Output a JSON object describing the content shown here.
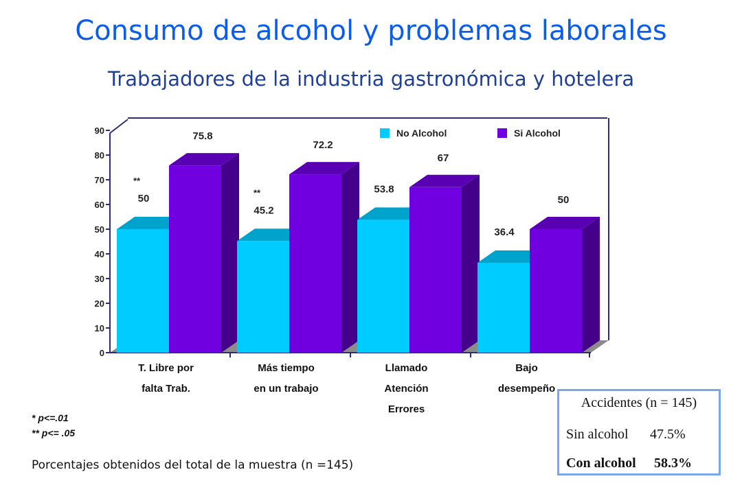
{
  "header": {
    "title": "Consumo de alcohol y problemas laborales",
    "subtitle": "Trabajadores de la industria gastronómica y hotelera"
  },
  "chart_data": {
    "type": "bar",
    "style": "3d-grouped",
    "categories": [
      [
        "T. Libre por",
        "falta Trab."
      ],
      [
        "Más tiempo",
        "en un trabajo"
      ],
      [
        "Llamado",
        "Atención",
        "Errores"
      ],
      [
        "Bajo",
        "desempeño"
      ]
    ],
    "series": [
      {
        "name": "No Alcohol",
        "color": "#00ccff",
        "values": [
          50,
          45.2,
          53.8,
          36.4
        ],
        "labels": [
          "50",
          "45.2",
          "53.8",
          "36.4"
        ]
      },
      {
        "name": "Si Alcohol",
        "color": "#7000e0",
        "values": [
          75.8,
          72.2,
          67,
          50
        ],
        "labels": [
          "75.8",
          "72.2",
          "67",
          "50"
        ]
      }
    ],
    "annotations": [
      {
        "category": 0,
        "text": "**"
      },
      {
        "category": 1,
        "text": "**"
      }
    ],
    "ylim": [
      0,
      90
    ],
    "yticks": [
      "0",
      "10",
      "20",
      "30",
      "40",
      "50",
      "60",
      "70",
      "80",
      "90"
    ],
    "legend": "top-right",
    "grid": false
  },
  "notes": {
    "line1": "* p<=.01",
    "line2": "** p<= .05",
    "footnote": "Porcentajes obtenidos del total de la muestra  (n =145)"
  },
  "accidents": {
    "title": "Accidentes (n = 145)",
    "rows": [
      {
        "label": "Sin alcohol",
        "value": "47.5%"
      },
      {
        "label": "Con alcohol",
        "value": "58.3%"
      }
    ]
  }
}
